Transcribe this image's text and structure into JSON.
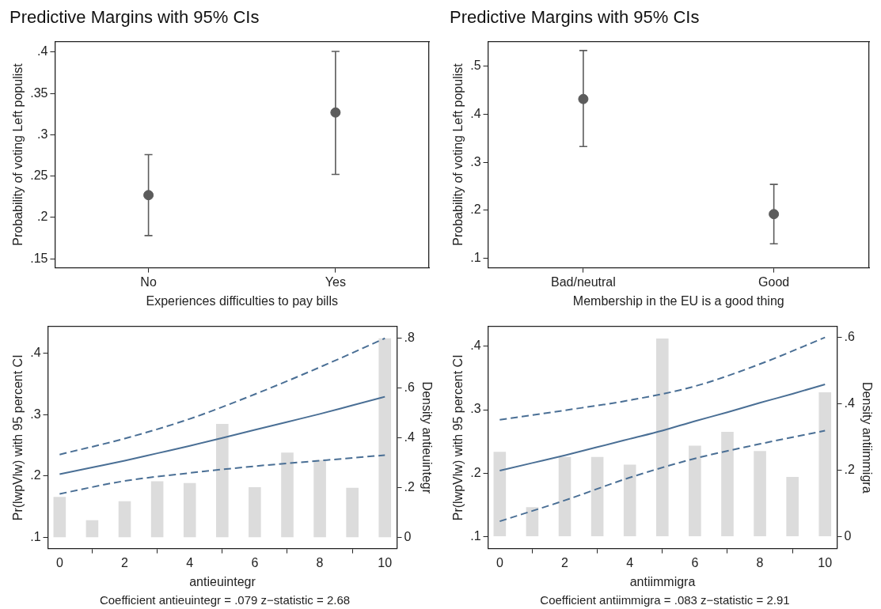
{
  "chart_data": [
    {
      "type": "scatter",
      "title": "Predictive Margins with 95% CIs",
      "xlabel": "Experiences difficulties to pay bills",
      "ylabel": "Probability of voting Left populist",
      "categories": [
        "No",
        "Yes"
      ],
      "marker": "circle",
      "ylim": [
        0.139,
        0.413
      ],
      "yticks": [
        {
          "value": 0.15,
          "label": ".15"
        },
        {
          "value": 0.2,
          "label": ".2"
        },
        {
          "value": 0.25,
          "label": ".25"
        },
        {
          "value": 0.3,
          "label": ".3"
        },
        {
          "value": 0.35,
          "label": ".35"
        },
        {
          "value": 0.4,
          "label": ".4"
        }
      ],
      "series": [
        {
          "color": "#5c5c5c",
          "values": [
            0.227,
            0.327
          ],
          "errors": [
            [
              0.178,
              0.276
            ],
            [
              0.252,
              0.401
            ]
          ]
        }
      ]
    },
    {
      "type": "scatter",
      "title": "Predictive Margins with 95% CIs",
      "xlabel": "Membership in the EU is a good thing",
      "ylabel": "Probability of voting Left populist",
      "categories": [
        "Bad/neutral",
        "Good"
      ],
      "marker": "circle",
      "ylim": [
        0.08,
        0.552
      ],
      "yticks": [
        {
          "value": 0.1,
          "label": ".1"
        },
        {
          "value": 0.2,
          "label": ".2"
        },
        {
          "value": 0.3,
          "label": ".3"
        },
        {
          "value": 0.4,
          "label": ".4"
        },
        {
          "value": 0.5,
          "label": ".5"
        }
      ],
      "series": [
        {
          "color": "#5c5c5c",
          "values": [
            0.432,
            0.192
          ],
          "errors": [
            [
              0.333,
              0.533
            ],
            [
              0.13,
              0.254
            ]
          ]
        }
      ]
    },
    {
      "type": "line",
      "xlabel": "antieuintegr",
      "ylabel": "Pr(lwpVlw) with 95 percent CI",
      "y2label": "Density antieuintegr",
      "annotations": [
        "Coefficient antieuintegr = .079 z−statistic = 2.68"
      ],
      "xlim": [
        -0.36,
        10.37
      ],
      "xticks": [
        0,
        2,
        4,
        6,
        8,
        10
      ],
      "ylim": [
        0.082,
        0.443
      ],
      "yticks": [
        {
          "value": 0.1,
          "label": ".1"
        },
        {
          "value": 0.2,
          "label": ".2"
        },
        {
          "value": 0.3,
          "label": ".3"
        },
        {
          "value": 0.4,
          "label": ".4"
        }
      ],
      "y2lim": [
        -0.044,
        0.846
      ],
      "y2ticks": [
        0,
        {
          "value": 0.2,
          "label": ".2"
        },
        {
          "value": 0.4,
          "label": ".4"
        },
        {
          "value": 0.6,
          "label": ".6"
        },
        {
          "value": 0.8,
          "label": ".8"
        }
      ],
      "series": [
        {
          "type": "bar",
          "axis": "y2",
          "color": "#dcdcdc",
          "x": [
            0,
            1,
            2,
            3,
            4,
            5,
            6,
            7,
            8,
            9,
            10
          ],
          "values": [
            0.163,
            0.07,
            0.146,
            0.226,
            0.219,
            0.456,
            0.202,
            0.341,
            0.311,
            0.2,
            0.799
          ]
        },
        {
          "color": "#4a6f95",
          "x": [
            0,
            1,
            2,
            3,
            4,
            5,
            6,
            7,
            8,
            9,
            10
          ],
          "values": [
            0.203,
            0.214,
            0.225,
            0.237,
            0.249,
            0.262,
            0.275,
            0.288,
            0.301,
            0.315,
            0.329
          ]
        },
        {
          "color": "#4a6f95",
          "line_style": "dashed",
          "x": [
            0,
            2,
            4,
            6,
            8,
            10
          ],
          "values": [
            0.235,
            0.261,
            0.293,
            0.333,
            0.377,
            0.424
          ]
        },
        {
          "color": "#4a6f95",
          "line_style": "dashed",
          "x": [
            0,
            2,
            4,
            6,
            8,
            10
          ],
          "values": [
            0.171,
            0.192,
            0.205,
            0.216,
            0.225,
            0.234
          ]
        }
      ]
    },
    {
      "type": "line",
      "xlabel": "antiimmigra",
      "ylabel": "Pr(lwpVlw) with 95 percent CI",
      "y2label": "Density antiimmigra",
      "annotations": [
        "Coefficient antiimmigra = .083 z−statistic = 2.91"
      ],
      "xlim": [
        -0.36,
        10.37
      ],
      "xticks": [
        0,
        2,
        4,
        6,
        8,
        10
      ],
      "ylim": [
        0.081,
        0.431
      ],
      "yticks": [
        {
          "value": 0.1,
          "label": ".1"
        },
        {
          "value": 0.2,
          "label": ".2"
        },
        {
          "value": 0.3,
          "label": ".3"
        },
        {
          "value": 0.4,
          "label": ".4"
        }
      ],
      "y2lim": [
        -0.036,
        0.633
      ],
      "y2ticks": [
        0,
        {
          "value": 0.2,
          "label": ".2"
        },
        {
          "value": 0.4,
          "label": ".4"
        },
        {
          "value": 0.6,
          "label": ".6"
        }
      ],
      "series": [
        {
          "type": "bar",
          "axis": "y2",
          "color": "#dcdcdc",
          "x": [
            0,
            1,
            2,
            3,
            4,
            5,
            6,
            7,
            8,
            9,
            10
          ],
          "values": [
            0.256,
            0.089,
            0.24,
            0.24,
            0.217,
            0.597,
            0.274,
            0.316,
            0.258,
            0.18,
            0.435
          ]
        },
        {
          "color": "#4a6f95",
          "x": [
            0,
            1,
            2,
            3,
            4,
            5,
            6,
            7,
            8,
            9,
            10
          ],
          "values": [
            0.204,
            0.216,
            0.228,
            0.241,
            0.254,
            0.267,
            0.282,
            0.296,
            0.311,
            0.325,
            0.34
          ]
        },
        {
          "color": "#4a6f95",
          "line_style": "dashed",
          "x": [
            0,
            2,
            4,
            6,
            8,
            10
          ],
          "values": [
            0.284,
            0.299,
            0.315,
            0.337,
            0.372,
            0.414
          ]
        },
        {
          "color": "#4a6f95",
          "line_style": "dashed",
          "x": [
            0,
            2,
            4,
            6,
            8,
            10
          ],
          "values": [
            0.124,
            0.157,
            0.193,
            0.223,
            0.246,
            0.267
          ]
        }
      ]
    }
  ]
}
